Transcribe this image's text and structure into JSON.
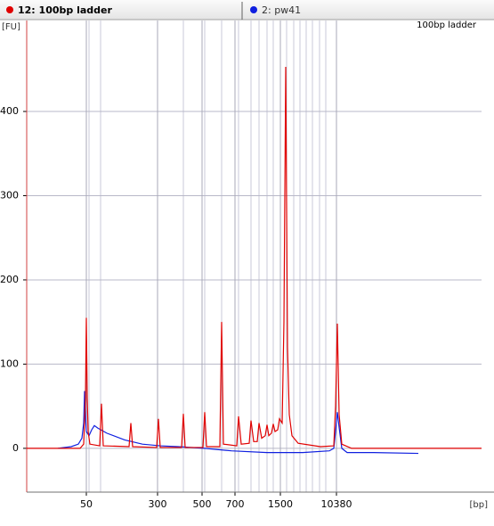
{
  "tabs": [
    {
      "label": "12: 100bp ladder",
      "color": "#e00000"
    },
    {
      "label": "2: pw41",
      "color": "#1020e0"
    }
  ],
  "chart_data": {
    "type": "line",
    "title": "100bp ladder",
    "ylabel": "[FU]",
    "xlabel": "[bp]",
    "xlim": [
      0,
      511
    ],
    "ylim": [
      -52,
      508
    ],
    "yticks": [
      0,
      100,
      200,
      300,
      400
    ],
    "xticks": [
      {
        "value": 67,
        "label": "50"
      },
      {
        "value": 147,
        "label": "300"
      },
      {
        "value": 197,
        "label": "500"
      },
      {
        "value": 234,
        "label": "700"
      },
      {
        "value": 285,
        "label": "1500"
      },
      {
        "value": 348,
        "label": "10380"
      }
    ],
    "xgrid": [
      70,
      83,
      176,
      200,
      219,
      238,
      252,
      261,
      270,
      277,
      292,
      300,
      307,
      314,
      321,
      329,
      336
    ],
    "grid": true,
    "series": [
      {
        "name": "12: 100bp ladder",
        "color": "#e00000",
        "x": [
          0,
          60,
          64,
          66,
          67,
          68,
          69,
          71,
          82,
          84,
          86,
          115,
          117,
          119,
          146,
          148,
          150,
          174,
          176,
          178,
          198,
          200,
          202,
          217,
          219,
          221,
          236,
          238,
          241,
          250,
          252,
          255,
          259,
          261,
          264,
          268,
          270,
          272,
          275,
          277,
          279,
          282,
          284,
          287,
          289,
          291,
          293,
          295,
          298,
          305,
          330,
          345,
          347,
          349,
          351,
          354,
          365,
          511
        ],
        "values": [
          0,
          0,
          5,
          60,
          155,
          60,
          20,
          5,
          3,
          53,
          3,
          2,
          30,
          2,
          1,
          35,
          1,
          1,
          41,
          1,
          1,
          43,
          2,
          2,
          150,
          5,
          3,
          38,
          5,
          6,
          33,
          8,
          8,
          30,
          12,
          15,
          28,
          15,
          18,
          29,
          20,
          22,
          35,
          30,
          150,
          453,
          120,
          40,
          15,
          6,
          2,
          3,
          50,
          148,
          40,
          5,
          0,
          0
        ]
      },
      {
        "name": "2: pw41",
        "color": "#1020e0",
        "x": [
          35,
          50,
          58,
          62,
          64,
          65,
          66,
          67,
          70,
          73,
          76,
          80,
          90,
          110,
          130,
          150,
          170,
          200,
          230,
          270,
          310,
          340,
          345,
          347,
          349,
          351,
          354,
          360,
          390,
          440
        ],
        "values": [
          0,
          2,
          5,
          12,
          30,
          68,
          40,
          20,
          15,
          22,
          27,
          24,
          18,
          10,
          5,
          3,
          2,
          0,
          -3,
          -5,
          -5,
          -3,
          0,
          20,
          43,
          25,
          0,
          -5,
          -5,
          -6
        ]
      }
    ]
  }
}
